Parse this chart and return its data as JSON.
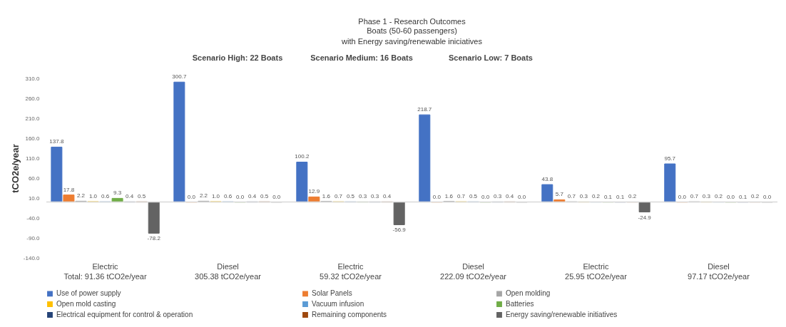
{
  "chart_data": {
    "type": "bar",
    "title": "Phase 1 - Research Outcomes",
    "subtitle": "Boats (50-60 passengers)\nwith Energy saving/renewable iniciatives",
    "ylabel": "tCO2e/year",
    "annotations": [
      "Scenario High: 22 Boats",
      "Scenario Medium: 16 Boats",
      "Scenario Low: 7 Boats"
    ],
    "categories": [
      "Electric\nTotal: 91.36 tCO2e/year",
      "Diesel\n305.38 tCO2e/year",
      "Electric\n59.32 tCO2e/year",
      "Diesel\n222.09 tCO2e/year",
      "Electric\n25.95 tCO2e/year",
      "Diesel\n97.17 tCO2e/year"
    ],
    "series": [
      {
        "name": "Use of power supply",
        "color": "#4472c4",
        "values": [
          137.8,
          300.7,
          100.2,
          218.7,
          43.8,
          95.7
        ],
        "value_labels": [
          "137.8",
          "300.7",
          "100.2",
          "218.7",
          "43.8",
          "95.7"
        ]
      },
      {
        "name": "Solar Panels",
        "color": "#ed7d31",
        "values": [
          17.8,
          0.0,
          12.9,
          0.0,
          5.7,
          0.0
        ],
        "value_labels": [
          "17.8",
          "0.0",
          "12.9",
          "0.0",
          "5.7",
          "0.0"
        ]
      },
      {
        "name": "Open molding",
        "color": "#a5a5a5",
        "values": [
          2.2,
          2.2,
          1.6,
          1.6,
          0.7,
          0.7
        ],
        "value_labels": [
          "2.2",
          "2.2",
          "1.6",
          "1.6",
          "0.7",
          "0.7"
        ]
      },
      {
        "name": "Open mold casting",
        "color": "#ffc000",
        "values": [
          1.0,
          1.0,
          0.7,
          0.7,
          0.3,
          0.3
        ],
        "value_labels": [
          "1.0",
          "1.0",
          "0.7",
          "0.7",
          "0.3",
          "0.3"
        ]
      },
      {
        "name": "Vacuum infusion",
        "color": "#5b9bd5",
        "values": [
          0.6,
          0.6,
          0.5,
          0.5,
          0.2,
          0.2
        ],
        "value_labels": [
          "0.6",
          "0.6",
          "0.5",
          "0.5",
          "0.2",
          "0.2"
        ]
      },
      {
        "name": "Batteries",
        "color": "#70ad47",
        "values": [
          9.3,
          0.0,
          0.3,
          0.0,
          0.1,
          0.0
        ],
        "value_labels": [
          "9.3",
          "0.0",
          "0.3",
          "0.0",
          "0.1",
          "0.0"
        ]
      },
      {
        "name": "Electrical equipment for control & operation",
        "color": "#264478",
        "values": [
          0.4,
          0.4,
          0.3,
          0.3,
          0.1,
          0.1
        ],
        "value_labels": [
          "0.4",
          "0.4",
          "0.3",
          "0.3",
          "0.1",
          "0.1"
        ]
      },
      {
        "name": "Remaining components",
        "color": "#9e480e",
        "values": [
          0.5,
          0.5,
          0.4,
          0.4,
          0.2,
          0.2
        ],
        "value_labels": [
          "0.5",
          "0.5",
          "0.4",
          "0.4",
          "0.2",
          "0.2"
        ]
      },
      {
        "name": "Energy saving/renewable initiatives",
        "color": "#636363",
        "values": [
          -78.2,
          0.0,
          -56.9,
          0.0,
          -24.9,
          0.0
        ],
        "value_labels": [
          "-78.2",
          "0.0",
          "-56.9",
          "0.0",
          "-24.9",
          "0.0"
        ]
      }
    ],
    "ylim": [
      -140,
      310
    ],
    "yticks": [
      {
        "value": -140,
        "label": "-140.0"
      },
      {
        "value": -90,
        "label": "-90.0"
      },
      {
        "value": -40,
        "label": "-40.0"
      },
      {
        "value": 10,
        "label": "10.0"
      },
      {
        "value": 60,
        "label": "60.0"
      },
      {
        "value": 110,
        "label": "110.0"
      },
      {
        "value": 160,
        "label": "160.0"
      },
      {
        "value": 210,
        "label": "210.0"
      },
      {
        "value": 260,
        "label": "260.0"
      },
      {
        "value": 310,
        "label": "310.0"
      }
    ],
    "grid": false,
    "legend": "bottom"
  }
}
